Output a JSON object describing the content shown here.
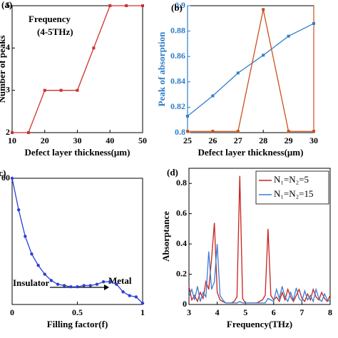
{
  "chart_data": [
    {
      "type": "line",
      "panel_label": "(a)",
      "xlabel": "Defect layer thickness(μm)",
      "ylabel": "Number of peaks",
      "annotations": [
        "Frequency",
        "(4-5THz)"
      ],
      "x": [
        10,
        15,
        20,
        25,
        30,
        35,
        40,
        45,
        50
      ],
      "xlim": [
        10,
        50
      ],
      "xticks": [
        10,
        20,
        30,
        40,
        50
      ],
      "ylim": [
        2,
        5
      ],
      "yticks": [
        2,
        3,
        4,
        5
      ],
      "series": [
        {
          "color": "#d0312d",
          "marker": "square",
          "values": [
            2,
            2,
            3,
            3,
            3,
            4,
            5,
            5,
            5
          ]
        }
      ]
    },
    {
      "type": "line",
      "panel_label": "(b)",
      "xlabel": "Defect layer thickness(μm)",
      "ylabel": "Peak of absorption",
      "ylabel_color": "#2f7fc8",
      "x": [
        25,
        26,
        27,
        28,
        29,
        30
      ],
      "xlim": [
        25,
        30
      ],
      "xticks": [
        25,
        26,
        27,
        28,
        29,
        30
      ],
      "ylim": [
        0.8,
        0.9
      ],
      "yticks": [
        0.8,
        0.82,
        0.84,
        0.86,
        0.88,
        0.9
      ],
      "y2lim": [
        0,
        100
      ],
      "series": [
        {
          "color": "#2f7fc8",
          "marker": "square",
          "values": [
            0.813,
            0.829,
            0.847,
            0.861,
            0.876,
            0.886
          ]
        },
        {
          "color": "#c8501e",
          "marker": "square",
          "axis": "y2",
          "values": [
            1,
            1,
            1,
            97,
            1,
            1
          ]
        }
      ]
    },
    {
      "type": "line",
      "panel_label": "(c)",
      "xlabel": "Filling factor(f)",
      "annotations": [
        "Insulator",
        "Metal"
      ],
      "x": [
        0,
        0.05,
        0.1,
        0.15,
        0.2,
        0.25,
        0.3,
        0.35,
        0.4,
        0.45,
        0.5,
        0.55,
        0.6,
        0.65,
        0.7,
        0.75,
        0.8,
        0.85,
        0.9,
        0.95,
        1
      ],
      "xlim": [
        0,
        1
      ],
      "xticks": [
        0,
        0.5,
        1
      ],
      "ylim": [
        0,
        100
      ],
      "yticks": [
        {
          "value": 100,
          "label": "00"
        }
      ],
      "series": [
        {
          "color": "#2a3fd6",
          "marker": "dot",
          "values": [
            100,
            75,
            54,
            40,
            31,
            24,
            19,
            16,
            15,
            14,
            14,
            15,
            15,
            16,
            18,
            18,
            16,
            10,
            7,
            6,
            1
          ]
        }
      ]
    },
    {
      "type": "line",
      "panel_label": "(d)",
      "xlabel": "Frequency(THz)",
      "ylabel": "Absorptance",
      "legend": "upper right",
      "x": [
        3,
        3.1,
        3.2,
        3.3,
        3.4,
        3.5,
        3.6,
        3.7,
        3.8,
        3.9,
        4,
        4.1,
        4.2,
        4.3,
        4.4,
        4.5,
        4.6,
        4.7,
        4.8,
        4.9,
        5,
        5.1,
        5.2,
        5.3,
        5.4,
        5.5,
        5.6,
        5.7,
        5.8,
        5.9,
        6,
        6.1,
        6.2,
        6.3,
        6.4,
        6.5,
        6.6,
        6.7,
        6.8,
        6.9,
        7,
        7.1,
        7.2,
        7.3,
        7.4,
        7.5,
        7.6,
        7.7,
        7.8,
        7.9,
        8
      ],
      "xlim": [
        3,
        8
      ],
      "xticks": [
        3,
        4,
        5,
        6,
        7,
        8
      ],
      "ylim": [
        0,
        0.9
      ],
      "yticks": [
        0,
        0.2,
        0.4,
        0.6,
        0.8
      ],
      "series": [
        {
          "name": "N₁=N₂=5",
          "color": "#c8201e",
          "values": [
            0.12,
            0.03,
            0.06,
            0.02,
            0.08,
            0.04,
            0.15,
            0.1,
            0.3,
            0.54,
            0.08,
            0.03,
            0.02,
            0.01,
            0.01,
            0.01,
            0.02,
            0.05,
            0.85,
            0.04,
            0.01,
            0.01,
            0.01,
            0.01,
            0.01,
            0.02,
            0.03,
            0.06,
            0.5,
            0.06,
            0.03,
            0.05,
            0.02,
            0.08,
            0.03,
            0.1,
            0.05,
            0.02,
            0.06,
            0.1,
            0.04,
            0.02,
            0.07,
            0.03,
            0.1,
            0.05,
            0.03,
            0.08,
            0.04,
            0.02,
            0.06
          ]
        },
        {
          "name": "N₁=N₂=15",
          "color": "#3a7fd0",
          "values": [
            0.05,
            0.1,
            0.03,
            0.12,
            0.02,
            0.08,
            0.05,
            0.35,
            0.1,
            0.15,
            0.4,
            0.06,
            0.03,
            0.01,
            0.01,
            0.01,
            0.01,
            0.01,
            0.02,
            0.01,
            0.01,
            0.01,
            0.01,
            0.01,
            0.01,
            0.01,
            0.01,
            0.01,
            0.04,
            0.03,
            0.02,
            0.1,
            0.04,
            0.12,
            0.05,
            0.02,
            0.08,
            0.03,
            0.11,
            0.04,
            0.02,
            0.09,
            0.03,
            0.06,
            0.02,
            0.1,
            0.04,
            0.02,
            0.07,
            0.03,
            0.02
          ]
        }
      ]
    }
  ]
}
